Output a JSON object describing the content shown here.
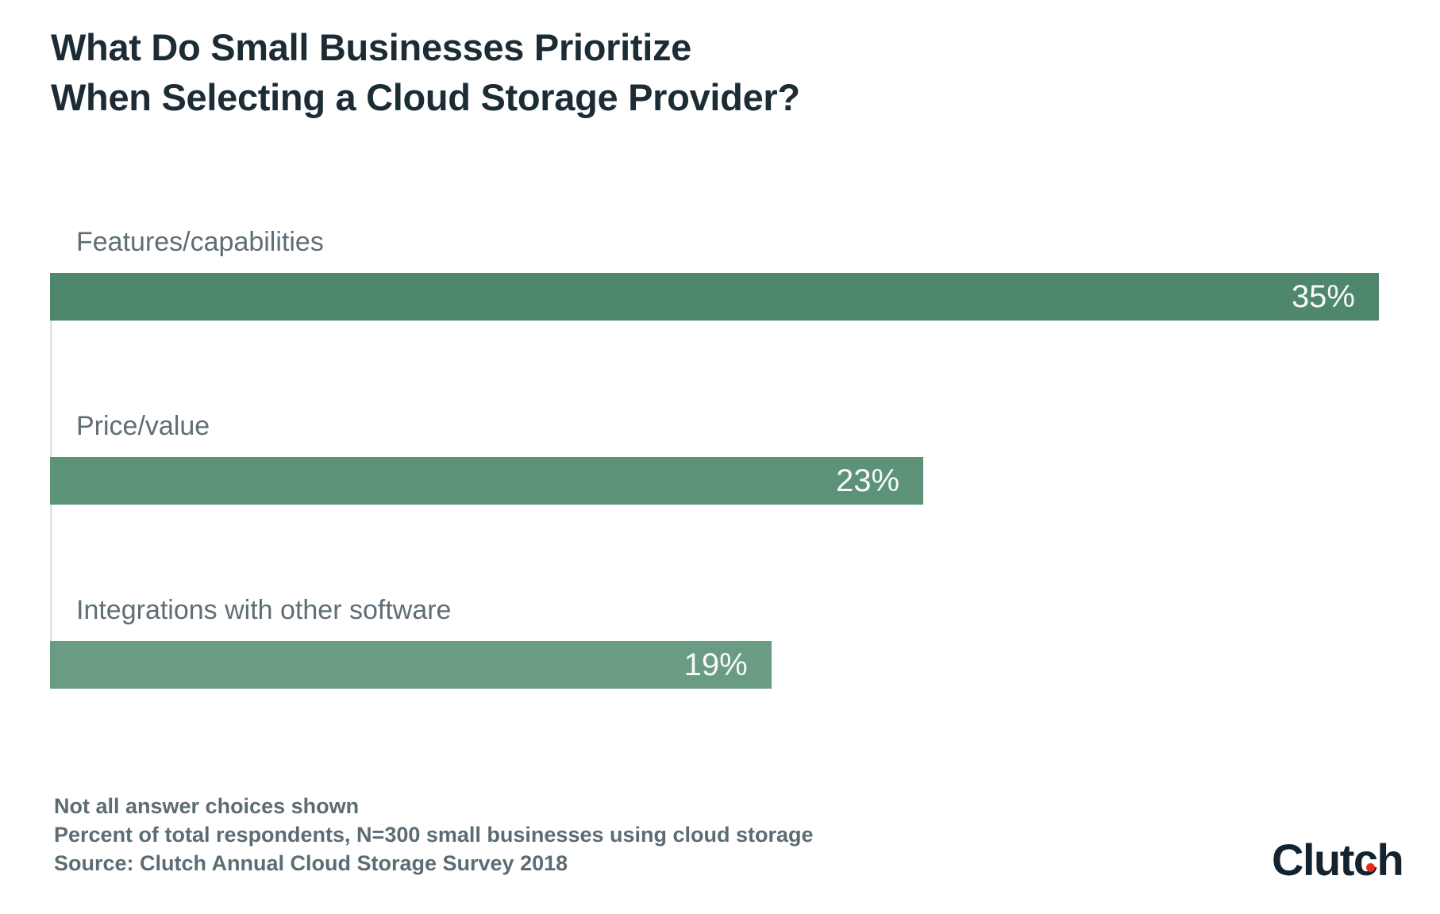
{
  "title": {
    "line1": "What Do Small Businesses Prioritize",
    "line2": "When Selecting a Cloud Storage Provider?"
  },
  "chart_data": {
    "type": "bar",
    "orientation": "horizontal",
    "title": "What Do Small Businesses Prioritize When Selecting a Cloud Storage Provider?",
    "categories": [
      "Features/capabilities",
      "Price/value",
      "Integrations with other software"
    ],
    "values": [
      35,
      23,
      19
    ],
    "value_labels": [
      "35%",
      "23%",
      "19%"
    ],
    "unit": "percent of respondents",
    "xlim": [
      0,
      35
    ],
    "grid": false,
    "legend": false,
    "value_label_position": "inside-right",
    "bar_colors": [
      "#4e876c",
      "#5c9278",
      "#6a9b83"
    ],
    "value_label_color": "#f7faf8",
    "category_label_color": "#5e6e76"
  },
  "footnotes": [
    "Not all answer choices shown",
    "Percent of total respondents, N=300 small businesses using cloud storage",
    "Source: Clutch Annual Cloud Storage Survey 2018"
  ],
  "branding": {
    "name": "Clutch",
    "pre": "Clut",
    "c": "c",
    "post": "h",
    "text_color": "#132430",
    "dot_color": "#e8291c"
  },
  "colors": {
    "background": "#ffffff",
    "title": "#1c2c35",
    "axis_line": "#e4e7e7",
    "footnote": "#5d6c74"
  }
}
